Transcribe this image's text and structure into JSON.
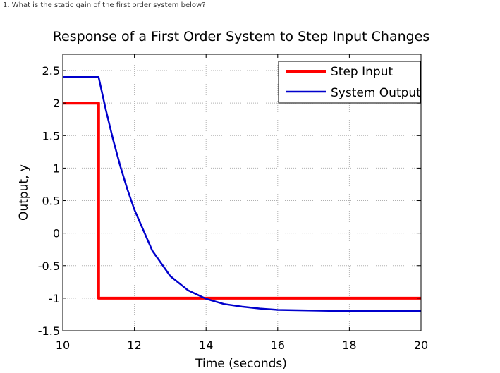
{
  "question": {
    "text": "1. What is the static gain of the first order system below?"
  },
  "chart_data": {
    "type": "line",
    "title": "Response of a First Order System to Step Input Changes",
    "xlabel": "Time (seconds)",
    "ylabel": "Output, y",
    "xlim": [
      10,
      20
    ],
    "ylim": [
      -1.5,
      2.75
    ],
    "grid": true,
    "legend_position": "top-right",
    "x_ticks": [
      10,
      12,
      14,
      16,
      18,
      20
    ],
    "x_tick_labels": [
      "10",
      "12",
      "14",
      "16",
      "18",
      "20"
    ],
    "y_ticks": [
      -1.5,
      -1,
      -0.5,
      0,
      0.5,
      1,
      1.5,
      2,
      2.5
    ],
    "y_tick_labels": [
      "-1.5",
      "-1",
      "-0.5",
      "0",
      "0.5",
      "1",
      "1.5",
      "2",
      "2.5"
    ],
    "series": [
      {
        "name": "Step Input",
        "color": "#ff0000",
        "x": [
          10,
          11,
          11,
          20
        ],
        "y": [
          2,
          2,
          -1,
          -1
        ]
      },
      {
        "name": "System Output",
        "color": "#0000cc",
        "x": [
          10,
          11,
          11.2,
          11.4,
          11.6,
          11.8,
          12,
          12.5,
          13,
          13.5,
          14,
          14.5,
          15,
          15.5,
          16,
          17,
          18,
          19,
          20
        ],
        "y": [
          2.4,
          2.4,
          1.9,
          1.45,
          1.04,
          0.68,
          0.36,
          -0.27,
          -0.66,
          -0.88,
          -1.01,
          -1.09,
          -1.13,
          -1.16,
          -1.18,
          -1.19,
          -1.2,
          -1.2,
          -1.2
        ]
      }
    ]
  }
}
